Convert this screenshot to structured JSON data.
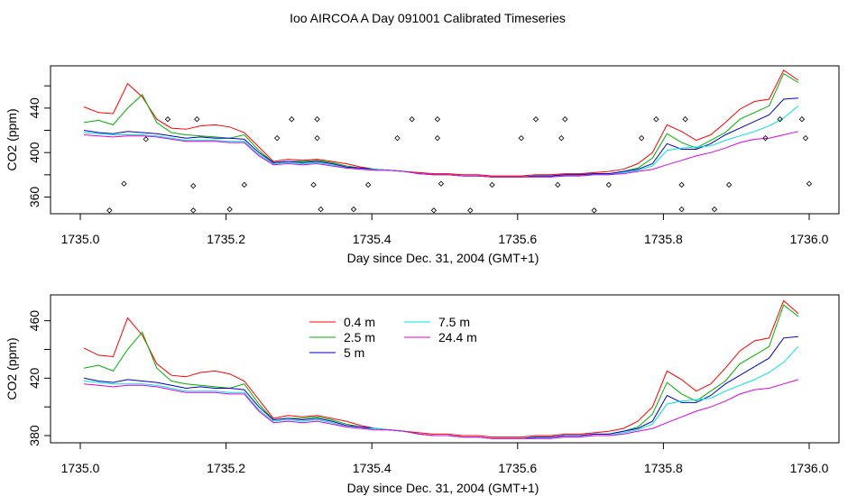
{
  "title": "Ioo AIRCOA A  Day 091001  Calibrated Timeseries",
  "chart_data": [
    {
      "type": "line",
      "ylabel": "CO2 (ppm)",
      "xlabel": "Day since Dec. 31, 2004 (GMT+1)",
      "xlim": [
        1735.0,
        1736.0
      ],
      "ylim": [
        345,
        478
      ],
      "xticks": [
        "1735.0",
        "1735.2",
        "1735.4",
        "1735.6",
        "1735.8",
        "1736.0"
      ],
      "yticks": [
        "360",
        "400",
        "440"
      ],
      "series": [
        {
          "name": "0.4 m",
          "color": "#ff0000",
          "x": [
            1735.005,
            1735.025,
            1735.045,
            1735.065,
            1735.085,
            1735.105,
            1735.125,
            1735.145,
            1735.165,
            1735.185,
            1735.205,
            1735.225,
            1735.245,
            1735.265,
            1735.285,
            1735.305,
            1735.325,
            1735.345,
            1735.365,
            1735.385,
            1735.405,
            1735.425,
            1735.445,
            1735.465,
            1735.485,
            1735.505,
            1735.525,
            1735.545,
            1735.565,
            1735.585,
            1735.605,
            1735.625,
            1735.645,
            1735.665,
            1735.685,
            1735.705,
            1735.725,
            1735.745,
            1735.765,
            1735.785,
            1735.805,
            1735.825,
            1735.845,
            1735.865,
            1735.885,
            1735.905,
            1735.925,
            1735.945,
            1735.965,
            1735.985
          ],
          "y": [
            441,
            436,
            435,
            462,
            450,
            430,
            422,
            421,
            424,
            425,
            423,
            418,
            405,
            392,
            394,
            393,
            394,
            392,
            390,
            387,
            385,
            384,
            383,
            382,
            381,
            381,
            380,
            380,
            379,
            379,
            379,
            380,
            380,
            381,
            381,
            382,
            383,
            385,
            390,
            400,
            425,
            419,
            411,
            416,
            427,
            439,
            446,
            448,
            474,
            465
          ]
        },
        {
          "name": "2.5 m",
          "color": "#00b000",
          "x": [
            1735.005,
            1735.025,
            1735.045,
            1735.065,
            1735.085,
            1735.105,
            1735.125,
            1735.145,
            1735.165,
            1735.185,
            1735.205,
            1735.225,
            1735.245,
            1735.265,
            1735.285,
            1735.305,
            1735.325,
            1735.345,
            1735.365,
            1735.385,
            1735.405,
            1735.425,
            1735.445,
            1735.465,
            1735.485,
            1735.505,
            1735.525,
            1735.545,
            1735.565,
            1735.585,
            1735.605,
            1735.625,
            1735.645,
            1735.665,
            1735.685,
            1735.705,
            1735.725,
            1735.745,
            1735.765,
            1735.785,
            1735.805,
            1735.825,
            1735.845,
            1735.865,
            1735.885,
            1735.905,
            1735.925,
            1735.945,
            1735.965,
            1735.985
          ],
          "y": [
            427,
            429,
            425,
            440,
            452,
            427,
            418,
            416,
            415,
            414,
            413,
            416,
            402,
            391,
            392,
            392,
            393,
            391,
            388,
            386,
            385,
            384,
            383,
            381,
            380,
            380,
            379,
            379,
            378,
            378,
            378,
            379,
            379,
            380,
            380,
            381,
            381,
            383,
            386,
            395,
            417,
            409,
            404,
            411,
            418,
            430,
            436,
            442,
            471,
            463
          ]
        },
        {
          "name": "5 m",
          "color": "#0000c8",
          "x": [
            1735.005,
            1735.025,
            1735.045,
            1735.065,
            1735.085,
            1735.105,
            1735.125,
            1735.145,
            1735.165,
            1735.185,
            1735.205,
            1735.225,
            1735.245,
            1735.265,
            1735.285,
            1735.305,
            1735.325,
            1735.345,
            1735.365,
            1735.385,
            1735.405,
            1735.425,
            1735.445,
            1735.465,
            1735.485,
            1735.505,
            1735.525,
            1735.545,
            1735.565,
            1735.585,
            1735.605,
            1735.625,
            1735.645,
            1735.665,
            1735.685,
            1735.705,
            1735.725,
            1735.745,
            1735.765,
            1735.785,
            1735.805,
            1735.825,
            1735.845,
            1735.865,
            1735.885,
            1735.905,
            1735.925,
            1735.945,
            1735.965,
            1735.985
          ],
          "y": [
            420,
            418,
            417,
            419,
            418,
            417,
            415,
            413,
            414,
            413,
            413,
            412,
            400,
            391,
            392,
            391,
            392,
            390,
            387,
            386,
            385,
            384,
            383,
            381,
            380,
            380,
            379,
            379,
            378,
            378,
            378,
            379,
            379,
            380,
            380,
            381,
            381,
            383,
            385,
            390,
            408,
            403,
            403,
            408,
            416,
            422,
            428,
            434,
            448,
            449
          ]
        },
        {
          "name": "7.5 m",
          "color": "#00e0e0",
          "x": [
            1735.005,
            1735.025,
            1735.045,
            1735.065,
            1735.085,
            1735.105,
            1735.125,
            1735.145,
            1735.165,
            1735.185,
            1735.205,
            1735.225,
            1735.245,
            1735.265,
            1735.285,
            1735.305,
            1735.325,
            1735.345,
            1735.365,
            1735.385,
            1735.405,
            1735.425,
            1735.445,
            1735.465,
            1735.485,
            1735.505,
            1735.525,
            1735.545,
            1735.565,
            1735.585,
            1735.605,
            1735.625,
            1735.645,
            1735.665,
            1735.685,
            1735.705,
            1735.725,
            1735.745,
            1735.765,
            1735.785,
            1735.805,
            1735.825,
            1735.845,
            1735.865,
            1735.885,
            1735.905,
            1735.925,
            1735.945,
            1735.965,
            1735.985
          ],
          "y": [
            418,
            417,
            416,
            416,
            416,
            415,
            413,
            411,
            411,
            411,
            410,
            410,
            398,
            390,
            391,
            390,
            391,
            389,
            386,
            385,
            385,
            384,
            383,
            381,
            380,
            380,
            379,
            379,
            378,
            378,
            378,
            378,
            378,
            379,
            379,
            380,
            380,
            382,
            384,
            388,
            402,
            404,
            405,
            406,
            411,
            415,
            419,
            424,
            431,
            442
          ]
        },
        {
          "name": "24.4 m",
          "color": "#e000e0",
          "x": [
            1735.005,
            1735.025,
            1735.045,
            1735.065,
            1735.085,
            1735.105,
            1735.125,
            1735.145,
            1735.165,
            1735.185,
            1735.205,
            1735.225,
            1735.245,
            1735.265,
            1735.285,
            1735.305,
            1735.325,
            1735.345,
            1735.365,
            1735.385,
            1735.405,
            1735.425,
            1735.445,
            1735.465,
            1735.485,
            1735.505,
            1735.525,
            1735.545,
            1735.565,
            1735.585,
            1735.605,
            1735.625,
            1735.645,
            1735.665,
            1735.685,
            1735.705,
            1735.725,
            1735.745,
            1735.765,
            1735.785,
            1735.805,
            1735.825,
            1735.845,
            1735.865,
            1735.885,
            1735.905,
            1735.925,
            1735.945,
            1735.965,
            1735.985
          ],
          "y": [
            416,
            415,
            414,
            415,
            415,
            414,
            412,
            410,
            410,
            410,
            409,
            409,
            397,
            389,
            390,
            389,
            390,
            388,
            386,
            385,
            384,
            384,
            383,
            381,
            380,
            380,
            379,
            379,
            378,
            378,
            378,
            378,
            378,
            379,
            379,
            380,
            380,
            381,
            383,
            385,
            389,
            393,
            397,
            400,
            404,
            409,
            412,
            413,
            416,
            419
          ]
        }
      ],
      "markers": {
        "x": [
          1735.04,
          1735.06,
          1735.09,
          1735.12,
          1735.155,
          1735.155,
          1735.16,
          1735.205,
          1735.225,
          1735.27,
          1735.29,
          1735.32,
          1735.325,
          1735.325,
          1735.33,
          1735.375,
          1735.395,
          1735.435,
          1735.455,
          1735.485,
          1735.49,
          1735.49,
          1735.495,
          1735.535,
          1735.565,
          1735.605,
          1735.625,
          1735.655,
          1735.66,
          1735.665,
          1735.705,
          1735.725,
          1735.77,
          1735.79,
          1735.825,
          1735.825,
          1735.83,
          1735.87,
          1735.89,
          1735.94,
          1735.96,
          1735.99,
          1735.995,
          1736.0
        ],
        "y": [
          348,
          372,
          412,
          430,
          348,
          370,
          430,
          349,
          371,
          413,
          430,
          371,
          430,
          413,
          349,
          349,
          371,
          413,
          430,
          348,
          413,
          430,
          372,
          348,
          371,
          413,
          430,
          371,
          413,
          430,
          348,
          371,
          413,
          430,
          349,
          371,
          430,
          349,
          371,
          413,
          430,
          430,
          413,
          372
        ]
      },
      "grid": false
    },
    {
      "type": "line",
      "ylabel": "CO2 (ppm)",
      "xlabel": "Day since Dec. 31, 2004 (GMT+1)",
      "xlim": [
        1735.0,
        1736.0
      ],
      "ylim": [
        375,
        478
      ],
      "xticks": [
        "1735.0",
        "1735.2",
        "1735.4",
        "1735.6",
        "1735.8",
        "1736.0"
      ],
      "yticks": [
        "380",
        "420",
        "460"
      ],
      "legend": {
        "placement": "top-center",
        "entries": [
          "0.4 m",
          "2.5 m",
          "5 m",
          "7.5 m",
          "24.4 m"
        ]
      },
      "series_ref": "same as chart 1"
    }
  ],
  "legend_labels": [
    "0.4 m",
    "2.5 m",
    "5 m",
    "7.5 m",
    "24.4 m"
  ]
}
